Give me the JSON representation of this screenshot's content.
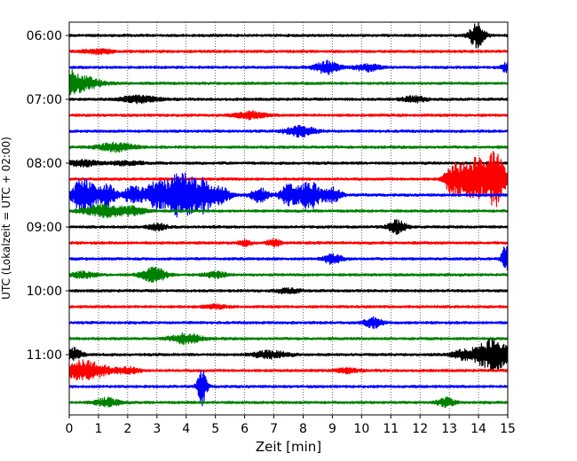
{
  "chart_data": {
    "type": "line",
    "title": "",
    "xlabel": "Zeit  [min]",
    "ylabel": "UTC (Lokalzeit = UTC + 02:00)",
    "xlim": [
      0,
      15
    ],
    "x_ticks": [
      "0",
      "1",
      "2",
      "3",
      "4",
      "5",
      "6",
      "7",
      "8",
      "9",
      "10",
      "11",
      "12",
      "13",
      "14",
      "15"
    ],
    "y_ticks": [
      "06:00",
      "07:00",
      "08:00",
      "09:00",
      "10:00",
      "11:00"
    ],
    "grid": "vertical dotted lines at each minute",
    "row_interval_minutes": 15,
    "color_cycle": [
      "#000000",
      "#ff0000",
      "#0000ff",
      "#008000"
    ],
    "traces": [
      {
        "start": "06:00",
        "color": "#000000",
        "events": [
          [
            13.95,
            0.9,
            0.25
          ]
        ]
      },
      {
        "start": "06:15",
        "color": "#ff0000",
        "events": [
          [
            1.0,
            0.15,
            0.5
          ]
        ]
      },
      {
        "start": "06:30",
        "color": "#0000ff",
        "events": [
          [
            8.8,
            0.45,
            0.4
          ],
          [
            10.2,
            0.25,
            0.4
          ],
          [
            15.0,
            0.4,
            0.2
          ]
        ]
      },
      {
        "start": "06:45",
        "color": "#008000",
        "events": [
          [
            0.3,
            0.55,
            0.7
          ],
          [
            0.05,
            0.45,
            0.2
          ]
        ]
      },
      {
        "start": "07:00",
        "color": "#000000",
        "events": [
          [
            2.4,
            0.25,
            0.6
          ],
          [
            11.8,
            0.2,
            0.4
          ]
        ]
      },
      {
        "start": "07:15",
        "color": "#ff0000",
        "events": [
          [
            6.2,
            0.25,
            0.5
          ]
        ]
      },
      {
        "start": "07:30",
        "color": "#0000ff",
        "events": [
          [
            7.9,
            0.35,
            0.5
          ]
        ]
      },
      {
        "start": "07:45",
        "color": "#008000",
        "events": [
          [
            1.6,
            0.3,
            0.6
          ]
        ]
      },
      {
        "start": "08:00",
        "color": "#000000",
        "events": [
          [
            0.5,
            0.2,
            0.6
          ],
          [
            2.0,
            0.15,
            0.5
          ]
        ]
      },
      {
        "start": "08:15",
        "color": "#ff0000",
        "events": [
          [
            13.3,
            1.0,
            0.25
          ],
          [
            13.7,
            1.2,
            0.25
          ],
          [
            14.0,
            1.1,
            0.2
          ],
          [
            14.4,
            1.3,
            0.25
          ],
          [
            14.8,
            0.9,
            0.2
          ],
          [
            13.0,
            0.7,
            0.2
          ],
          [
            14.6,
            1.1,
            0.2
          ]
        ]
      },
      {
        "start": "08:30",
        "color": "#0000ff",
        "events": [
          [
            0.5,
            1.2,
            0.4
          ],
          [
            1.3,
            0.8,
            0.3
          ],
          [
            2.2,
            0.7,
            0.3
          ],
          [
            3.0,
            1.0,
            0.4
          ],
          [
            4.0,
            1.3,
            0.4
          ],
          [
            4.6,
            1.1,
            0.3
          ],
          [
            5.2,
            0.6,
            0.3
          ],
          [
            6.5,
            0.5,
            0.3
          ],
          [
            7.5,
            0.7,
            0.3
          ],
          [
            8.2,
            1.0,
            0.4
          ],
          [
            9.0,
            0.5,
            0.3
          ],
          [
            3.6,
            0.8,
            0.3
          ]
        ]
      },
      {
        "start": "08:45",
        "color": "#008000",
        "events": [
          [
            1.2,
            0.45,
            0.7
          ],
          [
            2.2,
            0.25,
            0.4
          ]
        ]
      },
      {
        "start": "09:00",
        "color": "#000000",
        "events": [
          [
            11.2,
            0.45,
            0.3
          ],
          [
            3.0,
            0.25,
            0.3
          ]
        ]
      },
      {
        "start": "09:15",
        "color": "#ff0000",
        "events": [
          [
            6.0,
            0.2,
            0.2
          ],
          [
            7.0,
            0.3,
            0.2
          ]
        ]
      },
      {
        "start": "09:30",
        "color": "#0000ff",
        "events": [
          [
            9.0,
            0.35,
            0.3
          ],
          [
            14.95,
            1.1,
            0.15
          ]
        ]
      },
      {
        "start": "09:45",
        "color": "#008000",
        "events": [
          [
            2.9,
            0.55,
            0.4
          ],
          [
            5.0,
            0.2,
            0.4
          ],
          [
            0.5,
            0.2,
            0.4
          ]
        ]
      },
      {
        "start": "10:00",
        "color": "#000000",
        "events": [
          [
            7.5,
            0.15,
            0.4
          ]
        ]
      },
      {
        "start": "10:15",
        "color": "#ff0000",
        "events": [
          [
            5.0,
            0.12,
            0.4
          ]
        ]
      },
      {
        "start": "10:30",
        "color": "#0000ff",
        "events": [
          [
            10.4,
            0.35,
            0.3
          ]
        ]
      },
      {
        "start": "10:45",
        "color": "#008000",
        "events": [
          [
            4.0,
            0.35,
            0.5
          ]
        ]
      },
      {
        "start": "11:00",
        "color": "#000000",
        "events": [
          [
            14.5,
            1.1,
            0.6
          ],
          [
            0.1,
            0.5,
            0.3
          ],
          [
            6.9,
            0.25,
            0.6
          ],
          [
            13.5,
            0.3,
            0.4
          ]
        ]
      },
      {
        "start": "11:15",
        "color": "#ff0000",
        "events": [
          [
            0.5,
            0.7,
            0.8
          ],
          [
            2.0,
            0.2,
            0.4
          ],
          [
            9.5,
            0.15,
            0.4
          ]
        ]
      },
      {
        "start": "11:30",
        "color": "#0000ff",
        "events": [
          [
            4.55,
            1.3,
            0.15
          ]
        ]
      },
      {
        "start": "11:45",
        "color": "#008000",
        "events": [
          [
            1.3,
            0.3,
            0.4
          ],
          [
            12.9,
            0.3,
            0.3
          ]
        ]
      }
    ]
  }
}
